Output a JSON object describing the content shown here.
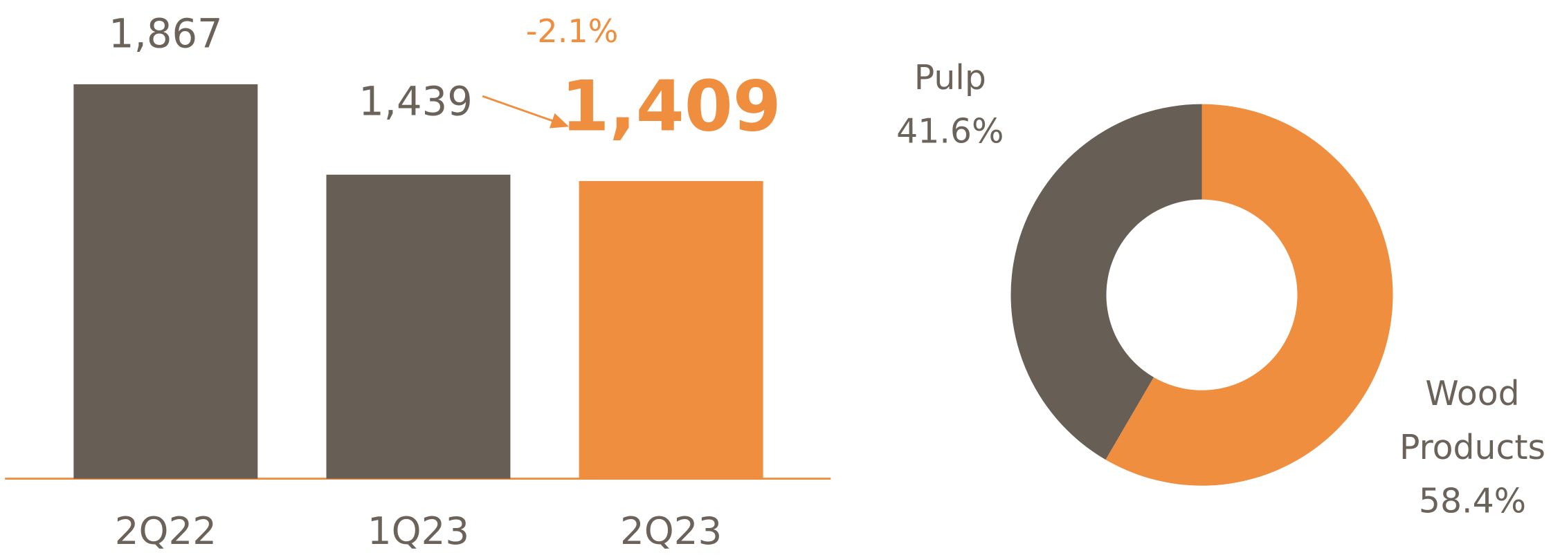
{
  "chart_data": [
    {
      "type": "bar",
      "categories": [
        "2Q22",
        "1Q23",
        "2Q23"
      ],
      "values": [
        1867,
        1439,
        1409
      ],
      "value_labels": [
        "1,867",
        "1,439",
        "1,409"
      ],
      "colors": [
        "#675e55",
        "#675e55",
        "#f08e3f"
      ],
      "annotation": "-2.1%"
    },
    {
      "type": "donut",
      "categories": [
        "Pulp",
        "Wood Products"
      ],
      "values": [
        41.6,
        58.4
      ],
      "value_labels": [
        "41.6%",
        "58.4%"
      ],
      "colors": [
        "#675e55",
        "#f08e3f"
      ]
    }
  ]
}
